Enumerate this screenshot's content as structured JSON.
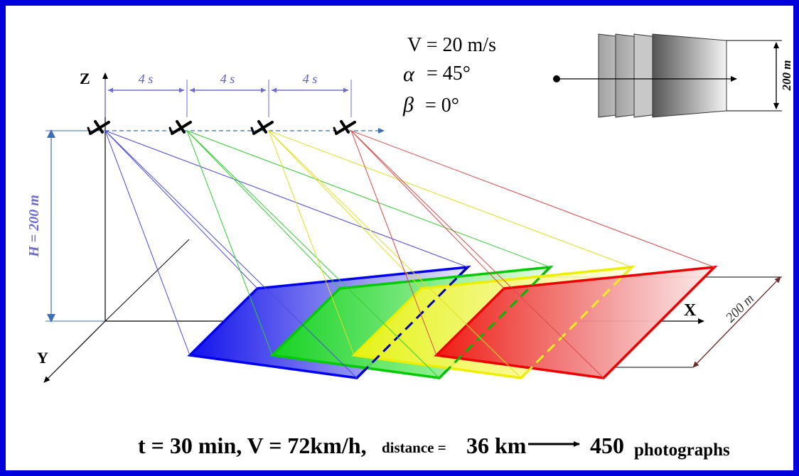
{
  "params": {
    "velocity": "V = 20 m/s",
    "alpha_symbol": "α",
    "alpha_value": "= 45°",
    "beta_symbol": "β",
    "beta_value": "= 0°"
  },
  "inset": {
    "width_label": "200 m"
  },
  "axes": {
    "z": "Z",
    "x": "X",
    "y": "Y"
  },
  "intervals": [
    "4 s",
    "4 s",
    "4 s"
  ],
  "height_label": "H = 200 m",
  "swath_label": "200 m",
  "footer": {
    "part1": "t = 30 min, V = 72km/h,",
    "part2": "distance =",
    "part3": "36 km",
    "part4": "450",
    "part5": "photographs"
  },
  "colors": {
    "frame": "#0000dd",
    "footprint_1": "#1f1fe6",
    "footprint_2": "#1fd21f",
    "footprint_3": "#f2f20a",
    "footprint_4": "#e61f1f",
    "interval_text": "#5a5ad2",
    "height_text": "#6a6ad8"
  }
}
